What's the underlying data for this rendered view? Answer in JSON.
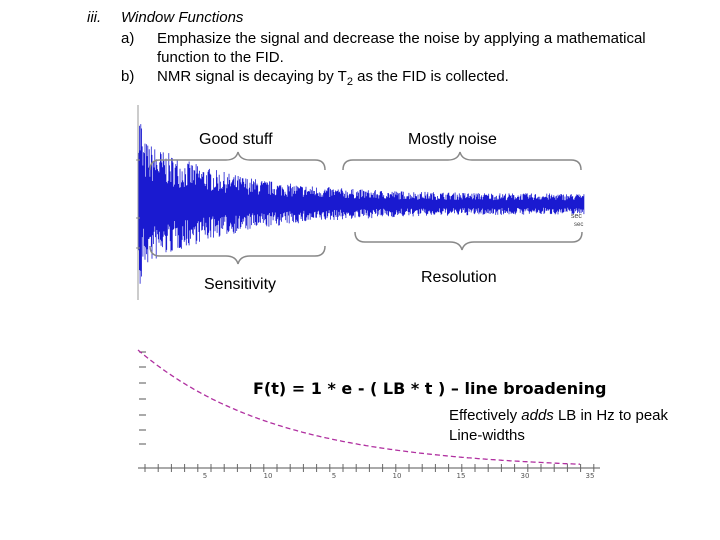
{
  "section": {
    "numeral": "iii.",
    "heading": "Window Functions",
    "items": [
      {
        "marker": "a)",
        "line1": "Emphasize the signal and decrease the noise by applying a mathematical",
        "line2": "function to the FID."
      },
      {
        "marker": "b)",
        "text_before": "NMR signal is decaying by T",
        "subscript": "2",
        "text_after": " as the FID is collected."
      }
    ]
  },
  "fid_figure": {
    "label_good": "Good stuff",
    "label_noise": "Mostly noise",
    "label_sensitivity": "Sensitivity",
    "label_resolution": "Resolution",
    "axis_tag_1": "sec",
    "axis_tag_2": "sec",
    "trace_color": "#1a1ad0"
  },
  "decay_figure": {
    "formula": "F(t) = 1 * e - ( LB * t ) – line broadening",
    "note_before": "Effectively ",
    "note_emph": "adds",
    "note_after": " LB in Hz to peak Line-widths",
    "curve_color": "#b030a0",
    "x_ticks": [
      "5",
      "10",
      "5",
      "10",
      "15",
      "30",
      "35"
    ]
  }
}
